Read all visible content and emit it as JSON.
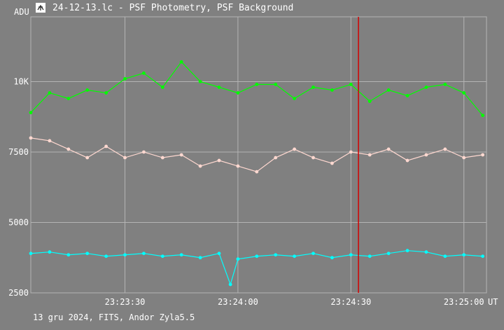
{
  "window": {
    "title": "24-12-13.lc - PSF Photometry, PSF Background",
    "app_icon": "telescope-icon"
  },
  "footer": "13 gru 2024, FITS, Andor Zyla5.5",
  "colors": {
    "background": "#808080",
    "grid": "#b4b4b4",
    "axis": "#ffffff",
    "series_green": "#00ff00",
    "series_pink": "#ffd8d0",
    "series_cyan": "#00ffff",
    "marker": "#d40000"
  },
  "chart_data": {
    "type": "scatter",
    "ylabel": "ADU",
    "xlabel": "UT",
    "ylim": [
      2500,
      12300
    ],
    "xlim": [
      "23:23:05",
      "23:25:06"
    ],
    "yticks": [
      {
        "value": 2500,
        "label": "2500"
      },
      {
        "value": 5000,
        "label": "5000"
      },
      {
        "value": 7500,
        "label": "7500"
      },
      {
        "value": 10000,
        "label": "10K"
      }
    ],
    "xticks": [
      {
        "value": "23:23:30",
        "label": "23:23:30"
      },
      {
        "value": "23:24:00",
        "label": "23:24:00"
      },
      {
        "value": "23:24:30",
        "label": "23:24:30"
      },
      {
        "value": "23:25:00",
        "label": "23:25:00"
      }
    ],
    "grid": true,
    "cursor": {
      "x": "23:24:32"
    },
    "series": [
      {
        "color": "#00ff00",
        "x": [
          "23:23:05",
          "23:23:10",
          "23:23:15",
          "23:23:20",
          "23:23:25",
          "23:23:30",
          "23:23:35",
          "23:23:40",
          "23:23:45",
          "23:23:50",
          "23:23:55",
          "23:24:00",
          "23:24:05",
          "23:24:10",
          "23:24:15",
          "23:24:20",
          "23:24:25",
          "23:24:30",
          "23:24:35",
          "23:24:40",
          "23:24:45",
          "23:24:50",
          "23:24:55",
          "23:25:00",
          "23:25:05"
        ],
        "y": [
          8900,
          9600,
          9400,
          9700,
          9600,
          10100,
          10300,
          9800,
          10700,
          10000,
          9800,
          9600,
          9900,
          9900,
          9400,
          9800,
          9700,
          9900,
          9300,
          9700,
          9500,
          9800,
          9900,
          9600,
          8800
        ]
      },
      {
        "color": "#ffd8d0",
        "x": [
          "23:23:05",
          "23:23:10",
          "23:23:15",
          "23:23:20",
          "23:23:25",
          "23:23:30",
          "23:23:35",
          "23:23:40",
          "23:23:45",
          "23:23:50",
          "23:23:55",
          "23:24:00",
          "23:24:05",
          "23:24:10",
          "23:24:15",
          "23:24:20",
          "23:24:25",
          "23:24:30",
          "23:24:35",
          "23:24:40",
          "23:24:45",
          "23:24:50",
          "23:24:55",
          "23:25:00",
          "23:25:05"
        ],
        "y": [
          8000,
          7900,
          7600,
          7300,
          7700,
          7300,
          7500,
          7300,
          7400,
          7000,
          7200,
          7000,
          6800,
          7300,
          7600,
          7300,
          7100,
          7500,
          7400,
          7600,
          7200,
          7400,
          7600,
          7300,
          7400
        ]
      },
      {
        "color": "#00ffff",
        "x": [
          "23:23:05",
          "23:23:10",
          "23:23:15",
          "23:23:20",
          "23:23:25",
          "23:23:30",
          "23:23:35",
          "23:23:40",
          "23:23:45",
          "23:23:50",
          "23:23:55",
          "23:23:58",
          "23:24:00",
          "23:24:05",
          "23:24:10",
          "23:24:15",
          "23:24:20",
          "23:24:25",
          "23:24:30",
          "23:24:35",
          "23:24:40",
          "23:24:45",
          "23:24:50",
          "23:24:55",
          "23:25:00",
          "23:25:05"
        ],
        "y": [
          3900,
          3950,
          3850,
          3900,
          3800,
          3850,
          3900,
          3800,
          3850,
          3750,
          3900,
          2800,
          3700,
          3800,
          3850,
          3800,
          3900,
          3750,
          3850,
          3800,
          3900,
          4000,
          3950,
          3800,
          3850,
          3800
        ]
      }
    ]
  }
}
